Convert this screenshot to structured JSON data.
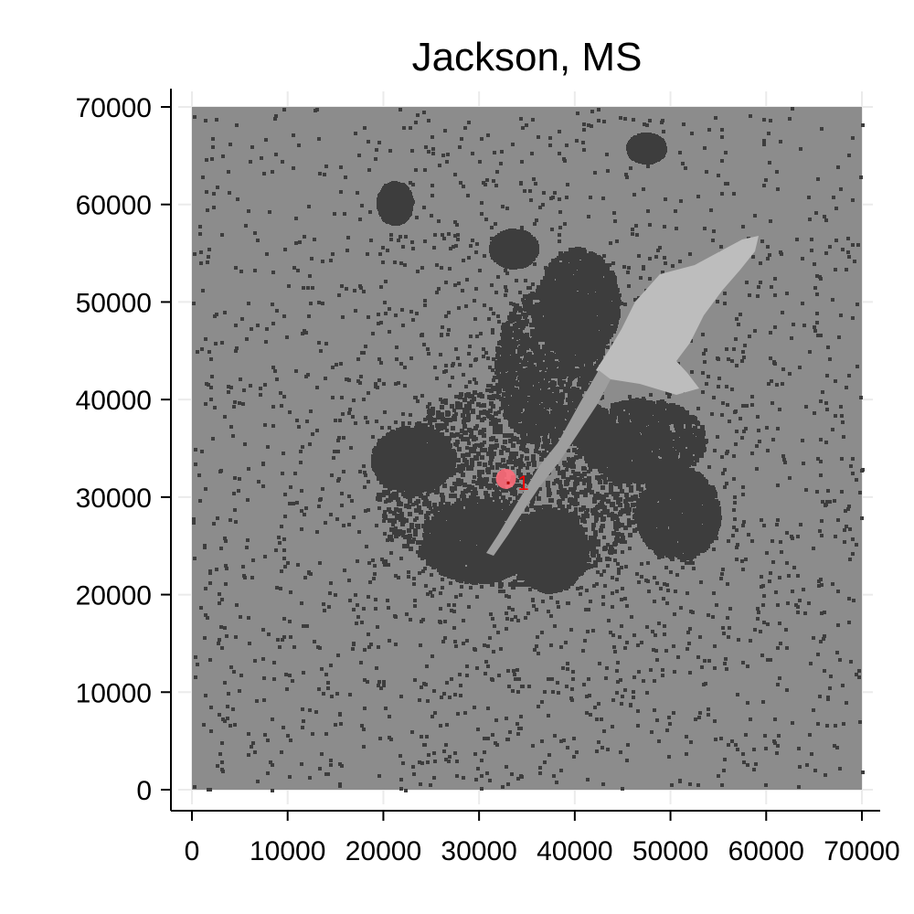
{
  "chart_data": {
    "type": "heatmap",
    "title": "Jackson, MS",
    "xlabel": "",
    "ylabel": "",
    "xlim": [
      0,
      70000
    ],
    "ylim": [
      0,
      70000
    ],
    "x_ticks": [
      0,
      10000,
      20000,
      30000,
      40000,
      50000,
      60000,
      70000
    ],
    "y_ticks": [
      0,
      10000,
      20000,
      30000,
      40000,
      50000,
      60000,
      70000
    ],
    "x_tick_labels": [
      "0",
      "10000",
      "20000",
      "30000",
      "40000",
      "50000",
      "60000",
      "70000"
    ],
    "y_tick_labels": [
      "0",
      "10000",
      "20000",
      "30000",
      "40000",
      "50000",
      "60000",
      "70000"
    ],
    "grid": true,
    "legend": "none",
    "colors": {
      "background_land": "#8c8c8c",
      "built_up": "#3d3d3d",
      "water": "#bdbdbd",
      "marker": "#ff6b7a",
      "marker_label": "#ff0000",
      "grid": "#ebebeb"
    },
    "markers": [
      {
        "label": "1",
        "x": 33000,
        "y": 31500
      }
    ]
  }
}
